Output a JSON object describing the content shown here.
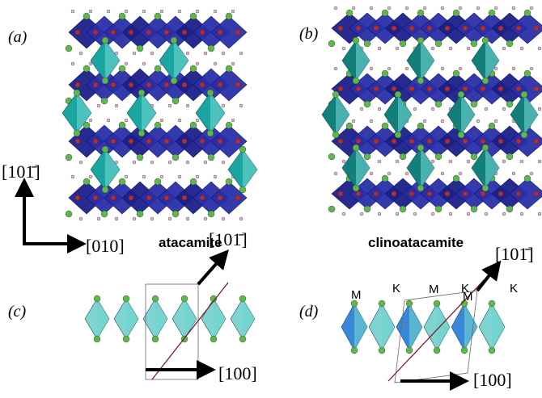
{
  "axes": {
    "vertical": "[101̄]",
    "horizontal": "[010]"
  },
  "panels": [
    {
      "label": "(a)",
      "name": "atacamite"
    },
    {
      "label": "(b)",
      "name": "clinoatacamite"
    },
    {
      "label": "(c)",
      "direction_diagonal": "[101̄]",
      "direction_right": "[100]"
    },
    {
      "label": "(d)",
      "direction_diagonal": "[101̄]",
      "direction_right": "[100]",
      "sites": [
        "M",
        "K",
        "M",
        "K",
        "M",
        "K"
      ]
    }
  ]
}
